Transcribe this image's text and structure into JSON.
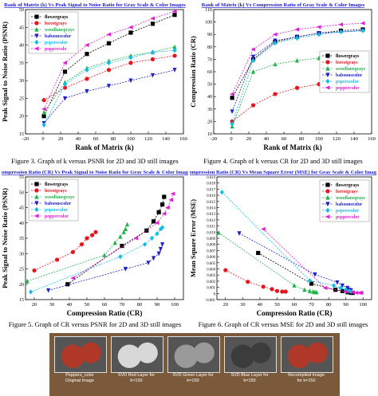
{
  "charts": [
    {
      "type": "line",
      "title": "Rank of Matrix (k) Vs Peak Signal to Noise Ratio for Gray Scale & Color Images",
      "xlabel": "Rank of Matrix (k)",
      "ylabel": "Peak Signal to Noise Ratio (PSNR)",
      "xlim": [
        -20,
        160
      ],
      "ylim": [
        15,
        50
      ],
      "xticks": [
        -20,
        0,
        20,
        40,
        60,
        80,
        100,
        120,
        140,
        160
      ],
      "yticks": [
        15,
        20,
        25,
        30,
        35,
        40,
        45,
        50
      ],
      "legend": "top-left",
      "series": [
        {
          "name": "flowergrays",
          "color": "#000000",
          "marker": "square",
          "x": [
            1,
            25,
            50,
            75,
            100,
            125,
            150
          ],
          "y": [
            20,
            32.5,
            37.5,
            40.5,
            43.5,
            46,
            48.5
          ]
        },
        {
          "name": "forestgrays",
          "color": "#e8141e",
          "marker": "circle",
          "x": [
            1,
            25,
            50,
            75,
            100,
            125,
            150
          ],
          "y": [
            24.5,
            28,
            30.5,
            33,
            35,
            36,
            37
          ]
        },
        {
          "name": "woodlanegrays",
          "color": "#22b24c",
          "marker": "triangle",
          "x": [
            1,
            25,
            50,
            75,
            100,
            125,
            150
          ],
          "y": [
            21,
            29.5,
            33.5,
            35.5,
            37,
            38,
            39.5
          ]
        },
        {
          "name": "baboonscolor",
          "color": "#2020c8",
          "marker": "triangle-down",
          "x": [
            1,
            25,
            50,
            75,
            100,
            125,
            150
          ],
          "y": [
            18,
            25,
            27,
            28.5,
            30,
            31.5,
            33
          ]
        },
        {
          "name": "peperscolor",
          "color": "#12bce8",
          "marker": "diamond",
          "x": [
            1,
            25,
            50,
            75,
            100,
            125,
            150
          ],
          "y": [
            17.5,
            29,
            33,
            35,
            36.5,
            38,
            38.5
          ]
        },
        {
          "name": "peppercolo",
          "color": "#e020d0",
          "marker": "triangle-left",
          "x": [
            1,
            25,
            50,
            75,
            100,
            125,
            150
          ],
          "y": [
            22,
            35,
            40,
            43,
            45,
            47.5,
            49.5
          ]
        }
      ]
    },
    {
      "type": "line",
      "title": "Rank of Matrix (k) Vs Compression Ratio of Gray Scale & Color Images",
      "xlabel": "Rank of Matrix (k)",
      "ylabel": "Compression Ratio (CR)",
      "xlim": [
        -20,
        160
      ],
      "ylim": [
        10,
        110
      ],
      "xticks": [
        -20,
        0,
        20,
        40,
        60,
        80,
        100,
        120,
        140,
        160
      ],
      "yticks": [
        10,
        20,
        30,
        40,
        50,
        60,
        70,
        80,
        90,
        100,
        110
      ],
      "legend": "right",
      "series": [
        {
          "name": "flowergrays",
          "color": "#000000",
          "marker": "square",
          "x": [
            1,
            25,
            50,
            75,
            100,
            125,
            150
          ],
          "y": [
            39,
            70,
            84,
            88,
            91,
            93,
            94
          ]
        },
        {
          "name": "forestgrays",
          "color": "#e8141e",
          "marker": "circle",
          "x": [
            1,
            25,
            50,
            75,
            100,
            125,
            150
          ],
          "y": [
            20,
            33,
            42,
            47,
            50,
            53,
            55
          ]
        },
        {
          "name": "woodlanegrays",
          "color": "#22b24c",
          "marker": "triangle",
          "x": [
            1,
            25,
            50,
            75,
            100,
            125,
            150
          ],
          "y": [
            16,
            60,
            66,
            69,
            71,
            72,
            73
          ]
        },
        {
          "name": "baboonscolor",
          "color": "#2020c8",
          "marker": "triangle-down",
          "x": [
            1,
            25,
            50,
            75,
            100,
            125,
            150
          ],
          "y": [
            28,
            72,
            85,
            88,
            91,
            92,
            93
          ]
        },
        {
          "name": "peperscolor",
          "color": "#12bce8",
          "marker": "diamond",
          "x": [
            1,
            25,
            50,
            75,
            100,
            125,
            150
          ],
          "y": [
            18,
            69,
            83,
            87,
            90,
            92,
            93
          ]
        },
        {
          "name": "peppercolor",
          "color": "#e020d0",
          "marker": "triangle-left",
          "x": [
            1,
            25,
            50,
            75,
            100,
            125,
            150
          ],
          "y": [
            42,
            78,
            90,
            94,
            96,
            98,
            99
          ]
        }
      ]
    },
    {
      "type": "line",
      "title": "Compression Ratio (CR) Vs Peak Signal to Noise Ratio for Gray Scale & Color Images",
      "xlabel": "Compression Ratio (CR)",
      "ylabel": "Peak Signal to Noise Ratio (PSNR)",
      "xlim": [
        15,
        105
      ],
      "ylim": [
        15,
        55
      ],
      "xticks": [
        20,
        30,
        40,
        50,
        60,
        70,
        80,
        90,
        100
      ],
      "yticks": [
        15,
        20,
        25,
        30,
        35,
        40,
        45,
        50,
        55
      ],
      "legend": "top-left",
      "series": [
        {
          "name": "flowergrays",
          "color": "#000000",
          "marker": "square",
          "x": [
            39,
            70,
            84,
            88,
            91,
            93,
            94
          ],
          "y": [
            20,
            32.5,
            37.5,
            40.5,
            43.5,
            46,
            48.5
          ]
        },
        {
          "name": "forestgrays",
          "color": "#e8141e",
          "marker": "circle",
          "x": [
            20,
            33,
            42,
            47,
            50,
            53,
            55
          ],
          "y": [
            24.5,
            28,
            30.5,
            33,
            35,
            36,
            37
          ]
        },
        {
          "name": "woodlanegrays",
          "color": "#22b24c",
          "marker": "triangle",
          "x": [
            16,
            60,
            66,
            69,
            71,
            72,
            73
          ],
          "y": [
            21,
            29.5,
            33.5,
            35.5,
            37,
            38,
            39.5
          ]
        },
        {
          "name": "baboonscolor",
          "color": "#2020c8",
          "marker": "triangle-down",
          "x": [
            28,
            72,
            85,
            88,
            91,
            92,
            93
          ],
          "y": [
            18,
            25,
            27,
            28.5,
            30,
            31.5,
            33
          ]
        },
        {
          "name": "peperscolor",
          "color": "#12bce8",
          "marker": "diamond",
          "x": [
            18,
            69,
            83,
            87,
            90,
            92,
            93
          ],
          "y": [
            17.5,
            29,
            33,
            35,
            36.5,
            38,
            38.5
          ]
        },
        {
          "name": "peppercolor",
          "color": "#e020d0",
          "marker": "triangle-left",
          "x": [
            42,
            78,
            90,
            94,
            96,
            98,
            99
          ],
          "y": [
            22,
            35,
            40,
            43,
            45,
            47.5,
            49.5
          ]
        }
      ]
    },
    {
      "type": "line",
      "title": "Compression Ratio (CR) Vs Mean Square Error (MSE) for Gray Scale & Color Images",
      "xlabel": "Compression Ratio (CR)",
      "ylabel": "Mean Square Error (MSE)",
      "xlim": [
        15,
        105
      ],
      "ylim": [
        -0.001,
        0.019
      ],
      "xticks": [
        20,
        30,
        40,
        50,
        60,
        70,
        80,
        90,
        100
      ],
      "yticks": [
        -0.001,
        0,
        0.001,
        0.002,
        0.003,
        0.004,
        0.005,
        0.006,
        0.007,
        0.008,
        0.009,
        0.01,
        0.011,
        0.012,
        0.013,
        0.014,
        0.015,
        0.016,
        0.017,
        0.018,
        0.019
      ],
      "legend": "top-right",
      "series": [
        {
          "name": "flowergrays",
          "color": "#000000",
          "marker": "square",
          "x": [
            39,
            70,
            84,
            88,
            91,
            93,
            94
          ],
          "y": [
            0.0066,
            0.0016,
            0.0006,
            0.0004,
            0.0002,
            0.0001,
            0.0001
          ]
        },
        {
          "name": "forestgrays",
          "color": "#e8141e",
          "marker": "circle",
          "x": [
            20,
            33,
            42,
            47,
            50,
            53,
            55
          ],
          "y": [
            0.0038,
            0.0019,
            0.0011,
            0.0007,
            0.0004,
            0.0003,
            0.0003
          ]
        },
        {
          "name": "woodlanegrays",
          "color": "#22b24c",
          "marker": "triangle",
          "x": [
            16,
            60,
            66,
            69,
            71,
            72,
            73
          ],
          "y": [
            0.0099,
            0.0013,
            0.0006,
            0.0004,
            0.0003,
            0.0002,
            0.0002
          ]
        },
        {
          "name": "baboonscolor",
          "color": "#2020c8",
          "marker": "triangle-down",
          "x": [
            28,
            72,
            85,
            88,
            91,
            92,
            93
          ],
          "y": [
            0.0098,
            0.0031,
            0.0018,
            0.0013,
            0.0009,
            0.0006,
            0.0005
          ]
        },
        {
          "name": "peperscolor",
          "color": "#12bce8",
          "marker": "diamond",
          "x": [
            18,
            69,
            83,
            87,
            90,
            92,
            93
          ],
          "y": [
            0.0165,
            0.0021,
            0.0013,
            0.0009,
            0.0006,
            0.0004,
            0.0003
          ]
        },
        {
          "name": "peppercolor",
          "color": "#e020d0",
          "marker": "triangle-left",
          "x": [
            42,
            78,
            90,
            94,
            96,
            98,
            99
          ],
          "y": [
            0.0105,
            0.0009,
            0.0003,
            0.0002,
            0.0001,
            0.0001,
            0.0001
          ]
        }
      ]
    }
  ],
  "captions": {
    "fig3": "Figure 3. Graph of k versus PSNR for 2D and 3D still images",
    "fig4": "Figure 4. Graph of k versus CR for 2D and 3D still images",
    "fig5": "Figure 5. Graph of CR versus PSNR for 2D and 3D still images",
    "fig6": "Figure 6. Graph of CR versus MSE for 2D and 3D still images"
  },
  "gallery": [
    {
      "line1": "Peppers_color",
      "line2": "Original Image",
      "tint": "#b03828"
    },
    {
      "line1": "SVD Red Layer for",
      "line2": "k=150",
      "tint": "#d8d8d8"
    },
    {
      "line1": "SVD Green Layer for",
      "line2": "k=150",
      "tint": "#9a9a9a"
    },
    {
      "line1": "SVD Blue Layer for",
      "line2": "k=150",
      "tint": "#3c3c3c"
    },
    {
      "line1": "Recompiled Image",
      "line2": "for k=150",
      "tint": "#b03828"
    }
  ],
  "colors": {
    "title_blue": "#1a1acc",
    "panel_border": "#8080c0"
  }
}
